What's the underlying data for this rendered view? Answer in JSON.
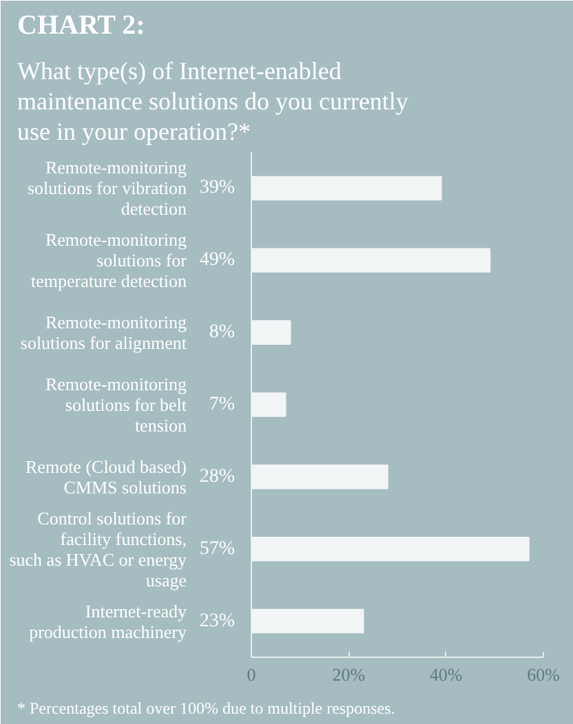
{
  "chart_data": {
    "type": "bar",
    "orientation": "horizontal",
    "title": "CHART 2:",
    "subtitle": "What type(s) of Internet-enabled maintenance solutions do you currently use in your operation?*",
    "categories": [
      "Remote-monitoring solutions for vibration detection",
      "Remote-monitoring solutions for temperature detection",
      "Remote-monitoring solutions for alignment",
      "Remote-monitoring solutions for belt tension",
      "Remote (Cloud based) CMMS solutions",
      "Control solutions for facility functions, such as HVAC or energy usage",
      "Internet-ready production machinery"
    ],
    "values": [
      39,
      49,
      8,
      7,
      28,
      57,
      23
    ],
    "value_labels": [
      "39%",
      "49%",
      "8%",
      "7%",
      "28%",
      "57%",
      "23%"
    ],
    "color": "#f2f5f5",
    "xlim": [
      0,
      60
    ],
    "xticks": [
      0,
      {
        "value": 20,
        "label": "20%"
      },
      {
        "value": 40,
        "label": "40%"
      },
      {
        "value": 60,
        "label": "60%"
      }
    ],
    "grid": false,
    "annotations": [
      "* Percentages total over 100% due to multiple responses."
    ]
  }
}
